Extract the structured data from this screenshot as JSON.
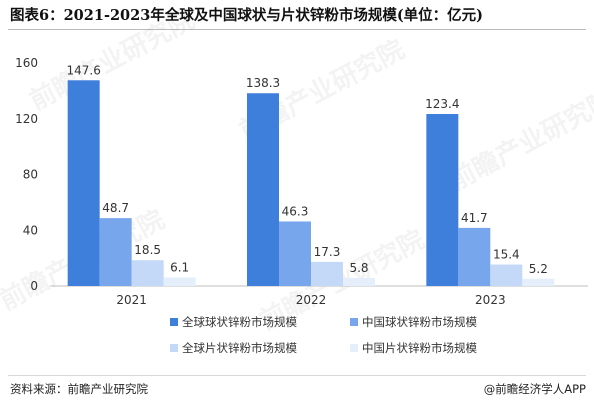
{
  "title": "图表6：2021-2023年全球及中国球状与片状锌粉市场规模(单位：亿元)",
  "source": "资料来源：前瞻产业研究院",
  "brand": "@前瞻经济学人APP",
  "watermark": "前瞻产业研究院",
  "chart_data": {
    "type": "bar",
    "title": "图表6：2021-2023年全球及中国球状与片状锌粉市场规模(单位：亿元)",
    "categories": [
      "2021",
      "2022",
      "2023"
    ],
    "series": [
      {
        "name": "全球球状锌粉市场规模",
        "values": [
          147.6,
          138.3,
          123.4
        ],
        "color": "#3d7fdb"
      },
      {
        "name": "中国球状锌粉市场规模",
        "values": [
          48.7,
          46.3,
          41.7
        ],
        "color": "#78a6ec"
      },
      {
        "name": "全球片状锌粉市场规模",
        "values": [
          18.5,
          17.3,
          15.4
        ],
        "color": "#c4d9f7"
      },
      {
        "name": "中国片状锌粉市场规模",
        "values": [
          6.1,
          5.8,
          5.2
        ],
        "color": "#e5eefb"
      }
    ],
    "ylim": [
      0,
      160
    ],
    "yticks": [
      0,
      40,
      80,
      120,
      160
    ],
    "grid": false,
    "legend": "bottom"
  }
}
